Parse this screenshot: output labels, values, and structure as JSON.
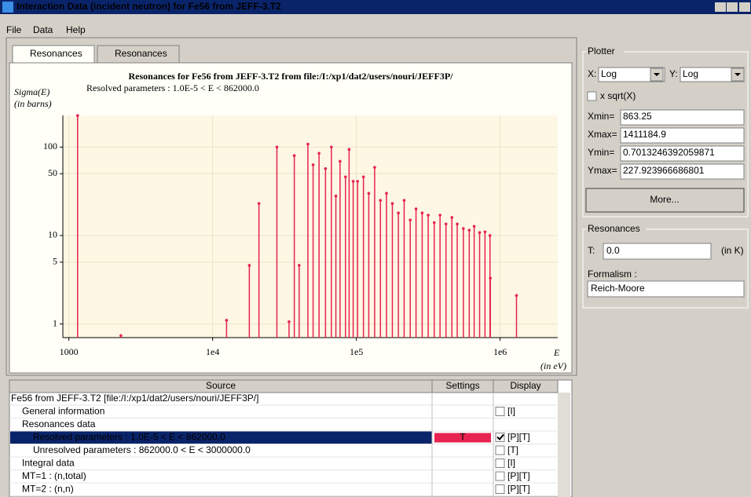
{
  "window": {
    "title": "Interaction Data (incident neutron) for Fe56 from JEFF-3.T2"
  },
  "menu": [
    "File",
    "Data",
    "Help"
  ],
  "tabs": [
    "Resonances",
    "Resonances"
  ],
  "chart_data": {
    "type": "stem",
    "title": "Resonances for Fe56 from JEFF-3.T2 from file:/I:/xp1/dat2/users/nouri/JEFF3P/",
    "subtitle": "Resolved parameters : 1.0E-5 < E < 862000.0",
    "ylabel": [
      "Sigma(E)",
      "(in barns)"
    ],
    "xlabel": [
      "E",
      "(in eV)"
    ],
    "x_log": true,
    "y_log": true,
    "grid": true,
    "color": "#e8234f",
    "xlim": [
      863.25,
      1411184.9
    ],
    "ylim": [
      0.7013246392059871,
      227.923966686801
    ],
    "xticks": [
      1000,
      {
        "value": 10000,
        "label": "1e4"
      },
      {
        "value": 100000,
        "label": "1e5"
      },
      {
        "value": 1000000,
        "label": "1e6"
      }
    ],
    "yticks": [
      1,
      5,
      10,
      50,
      100
    ],
    "x": [
      1150,
      2300,
      12500,
      18000,
      21000,
      28000,
      34000,
      37000,
      40000,
      46000,
      50000,
      55000,
      61000,
      67000,
      72000,
      77000,
      84000,
      89000,
      95000,
      102000,
      112000,
      122000,
      134000,
      147000,
      162000,
      178000,
      196000,
      215000,
      237000,
      260000,
      287000,
      316000,
      348000,
      382000,
      420000,
      462000,
      503000,
      555000,
      610000,
      660000,
      720000,
      785000,
      850000,
      855000,
      1300000
    ],
    "values": [
      227,
      0.74,
      1.1,
      4.6,
      23,
      100,
      1.06,
      80,
      4.6,
      108,
      63,
      85,
      57,
      100,
      28,
      69,
      46,
      94,
      41,
      41,
      46,
      30,
      59,
      25,
      30,
      23,
      18,
      25,
      15,
      20,
      18,
      17,
      14,
      17,
      13.5,
      16,
      13.5,
      12,
      11.5,
      12.7,
      10.8,
      11,
      10,
      3.3,
      2.1
    ]
  },
  "plotter": {
    "title": "Plotter",
    "x_label": "X:",
    "x_scale": "Log",
    "y_label": "Y:",
    "y_scale": "Log",
    "sqrt_label": "x sqrt(X)",
    "sqrt_checked": false,
    "fields": [
      {
        "label": "Xmin=",
        "value": "863.25"
      },
      {
        "label": "Xmax=",
        "value": "1411184.9"
      },
      {
        "label": "Ymin=",
        "value": "0.7013246392059871"
      },
      {
        "label": "Ymax=",
        "value": "227.923966686801"
      }
    ],
    "button": "More..."
  },
  "resonances_panel": {
    "title": "Resonances",
    "t_label": "T:",
    "t_value": "0.0",
    "t_unit": "(in K)",
    "formalism_label": "Formalism :",
    "formalism_value": "Reich-Moore"
  },
  "table": {
    "columns": [
      "Source",
      "Settings",
      "Display"
    ],
    "rows": [
      {
        "source": "Fe56 from JEFF-3.T2 [file:/I:/xp1/dat2/users/nouri/JEFF3P/]",
        "indent": 0
      },
      {
        "source": "General information",
        "indent": 1,
        "checked": false,
        "display": "[I]"
      },
      {
        "source": "Resonances data",
        "indent": 1
      },
      {
        "source": "Resolved parameters : 1.0E-5 < E < 862000.0",
        "indent": 2,
        "selected": true,
        "settings": "T",
        "checked": true,
        "display": "[P][T]"
      },
      {
        "source": "Unresolved parameters : 862000.0 < E < 3000000.0",
        "indent": 2,
        "checked": false,
        "display": "[T]"
      },
      {
        "source": "Integral data",
        "indent": 1,
        "checked": false,
        "display": "[I]"
      },
      {
        "source": "MT=1 : (n,total)",
        "indent": 1,
        "checked": false,
        "display": "[P][T]"
      },
      {
        "source": "MT=2 : (n,n)",
        "indent": 1,
        "checked": false,
        "display": "[P][T]"
      }
    ]
  }
}
